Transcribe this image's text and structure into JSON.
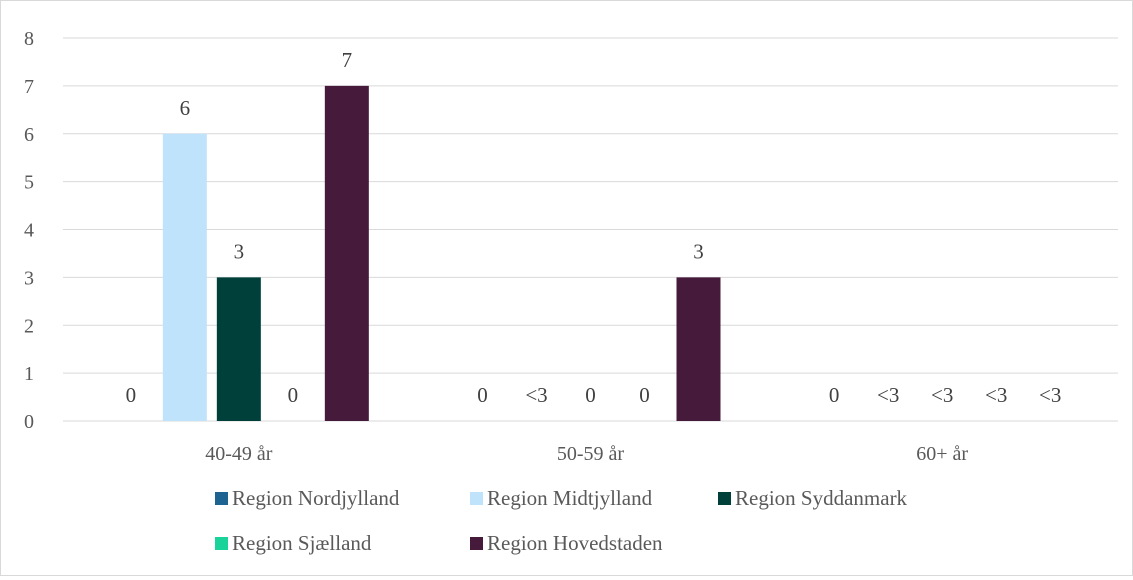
{
  "chart_data": {
    "type": "bar",
    "categories": [
      "40-49 år",
      "50-59 år",
      "60+ år"
    ],
    "ylim": [
      0,
      8
    ],
    "yticks": [
      0,
      1,
      2,
      3,
      4,
      5,
      6,
      7,
      8
    ],
    "grid": true,
    "legend_position": "bottom",
    "series": [
      {
        "name": "Region Nordjylland",
        "color": "#1f6391",
        "values": [
          0,
          0,
          0
        ],
        "labels": [
          "0",
          "0",
          "0"
        ]
      },
      {
        "name": "Region Midtjylland",
        "color": "#bfe3fb",
        "values": [
          6,
          0,
          0
        ],
        "labels": [
          "6",
          "<3",
          "<3"
        ]
      },
      {
        "name": "Region Syddanmark",
        "color": "#00403a",
        "values": [
          3,
          0,
          0
        ],
        "labels": [
          "3",
          "0",
          "<3"
        ]
      },
      {
        "name": "Region Sjælland",
        "color": "#19d39b",
        "values": [
          0,
          0,
          0
        ],
        "labels": [
          "0",
          "0",
          "<3"
        ]
      },
      {
        "name": "Region Hovedstaden",
        "color": "#451a3b",
        "values": [
          7,
          3,
          0
        ],
        "labels": [
          "7",
          "3",
          "<3"
        ]
      }
    ]
  }
}
